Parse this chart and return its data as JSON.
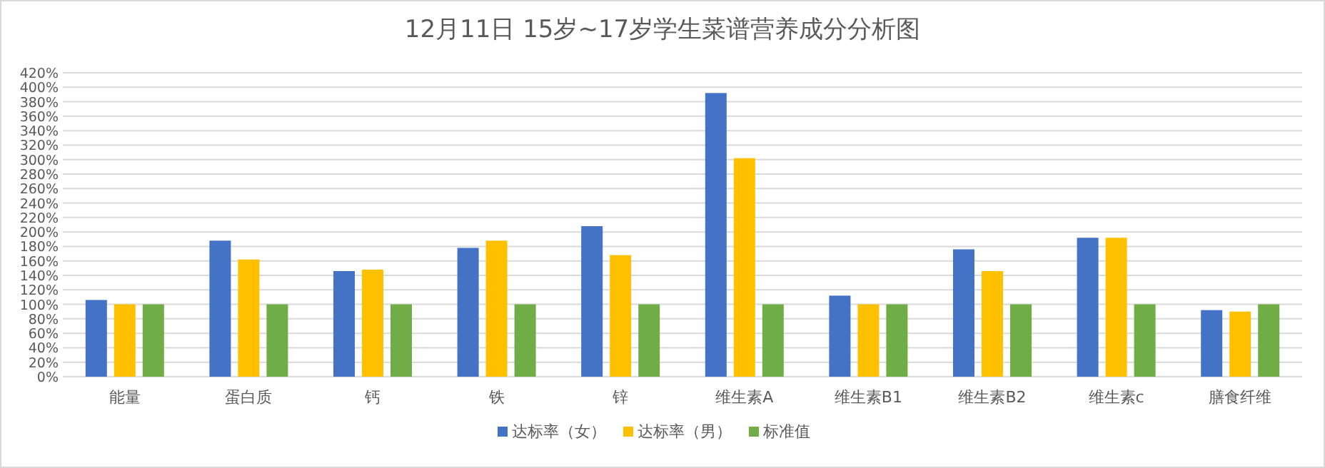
{
  "chart_data": {
    "type": "bar",
    "title": "12月11日 15岁~17岁学生菜谱营养成分分析图",
    "categories": [
      "能量",
      "蛋白质",
      "钙",
      "铁",
      "锌",
      "维生素A",
      "维生素B1",
      "维生素B2",
      "维生素c",
      "膳食纤维"
    ],
    "series": [
      {
        "name": "达标率（女）",
        "color": "#4472c4",
        "values": [
          106,
          188,
          146,
          178,
          208,
          392,
          112,
          176,
          192,
          92
        ]
      },
      {
        "name": "达标率（男）",
        "color": "#ffc000",
        "values": [
          100,
          162,
          148,
          188,
          168,
          302,
          100,
          146,
          192,
          90
        ]
      },
      {
        "name": "标准值",
        "color": "#70ad47",
        "values": [
          100,
          100,
          100,
          100,
          100,
          100,
          100,
          100,
          100,
          100
        ]
      }
    ],
    "ylim": [
      0,
      420
    ],
    "yticks": [
      {
        "value": 0,
        "label": "0%"
      },
      {
        "value": 20,
        "label": "20%"
      },
      {
        "value": 40,
        "label": "40%"
      },
      {
        "value": 60,
        "label": "60%"
      },
      {
        "value": 80,
        "label": "80%"
      },
      {
        "value": 100,
        "label": "100%"
      },
      {
        "value": 120,
        "label": "120%"
      },
      {
        "value": 140,
        "label": "140%"
      },
      {
        "value": 160,
        "label": "160%"
      },
      {
        "value": 180,
        "label": "180%"
      },
      {
        "value": 200,
        "label": "200%"
      },
      {
        "value": 220,
        "label": "220%"
      },
      {
        "value": 240,
        "label": "240%"
      },
      {
        "value": 260,
        "label": "260%"
      },
      {
        "value": 280,
        "label": "280%"
      },
      {
        "value": 300,
        "label": "300%"
      },
      {
        "value": 320,
        "label": "320%"
      },
      {
        "value": 340,
        "label": "340%"
      },
      {
        "value": 360,
        "label": "360%"
      },
      {
        "value": 380,
        "label": "380%"
      },
      {
        "value": 400,
        "label": "400%"
      },
      {
        "value": 420,
        "label": "420%"
      }
    ],
    "grid": "y",
    "legend": "bottom"
  }
}
